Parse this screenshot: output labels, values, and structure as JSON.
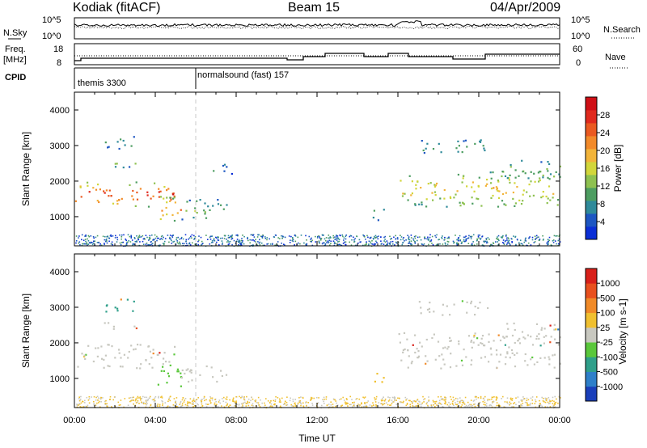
{
  "header": {
    "station": "Kodiak (fitACF)",
    "beam": "Beam 15",
    "date": "04/Apr/2009"
  },
  "strip_panels": {
    "noise": {
      "left_label": "N.Sky",
      "right_label": "N.Search",
      "left_ticks": [
        "10^5",
        "10^0"
      ],
      "right_ticks": [
        "10^5",
        "10^0"
      ]
    },
    "freq": {
      "left_label_top": "Freq.",
      "left_label_bottom": "[MHz]",
      "right_label": "Nave",
      "left_ticks": [
        "18",
        "8"
      ],
      "right_ticks": [
        "60",
        "0"
      ]
    },
    "cpid": {
      "label": "CPID",
      "modes": [
        {
          "name": "themis 3300",
          "start_hour": 0
        },
        {
          "name": "normalsound (fast) 157",
          "start_hour": 6
        }
      ]
    }
  },
  "chart_data": [
    {
      "type": "heatmap",
      "name": "Power",
      "x_label": "Time UT",
      "y_label": "Slant Range [km]",
      "x_range_hours": [
        0,
        24
      ],
      "y_range_km": [
        180,
        4500
      ],
      "y_ticks": [
        1000,
        2000,
        3000,
        4000
      ],
      "colorbar": {
        "label": "Power [dB]",
        "ticks": [
          "4",
          "8",
          "12",
          "16",
          "20",
          "24",
          "28"
        ],
        "colors": [
          "#0b2fd6",
          "#1d56c2",
          "#2f8a9a",
          "#4d9d61",
          "#8ec150",
          "#d2d63a",
          "#f2b43a",
          "#f28a2a",
          "#ea5a21",
          "#e02a1e",
          "#cf0f16"
        ]
      },
      "regions": [
        {
          "t": [
            0.0,
            5.0
          ],
          "r": [
            1300,
            2000
          ],
          "level": 9
        },
        {
          "t": [
            4.2,
            5.3
          ],
          "r": [
            800,
            1600
          ],
          "level": 7
        },
        {
          "t": [
            5.2,
            7.5
          ],
          "r": [
            900,
            1500
          ],
          "level": 4
        },
        {
          "t": [
            1.3,
            3.2
          ],
          "r": [
            2400,
            2600
          ],
          "level": 4
        },
        {
          "t": [
            1.5,
            3.0
          ],
          "r": [
            2900,
            3300
          ],
          "level": 3
        },
        {
          "t": [
            6.7,
            8.0
          ],
          "r": [
            2200,
            2500
          ],
          "level": 2
        },
        {
          "t": [
            14.7,
            15.3
          ],
          "r": [
            900,
            1300
          ],
          "level": 3
        },
        {
          "t": [
            16.0,
            24.0
          ],
          "r": [
            1300,
            2300
          ],
          "level": 6
        },
        {
          "t": [
            17.0,
            20.5
          ],
          "r": [
            2800,
            3200
          ],
          "level": 3
        },
        {
          "t": [
            21.0,
            24.0
          ],
          "r": [
            2100,
            2600
          ],
          "level": 4
        }
      ]
    },
    {
      "type": "heatmap",
      "name": "Velocity",
      "x_label": "Time UT",
      "y_label": "Slant Range [km]",
      "x_range_hours": [
        0,
        24
      ],
      "x_ticks": [
        "00:00",
        "04:00",
        "08:00",
        "12:00",
        "16:00",
        "20:00",
        "00:00"
      ],
      "y_range_km": [
        180,
        4500
      ],
      "y_ticks": [
        1000,
        2000,
        3000,
        4000
      ],
      "colorbar": {
        "label": "Velocity [m s-1]",
        "ticks": [
          "1000",
          "500",
          "100",
          "25",
          "-25",
          "-100",
          "-500",
          "-1000"
        ],
        "colors": [
          "#1a3fba",
          "#2e7fc9",
          "#2f9f8a",
          "#5ac73b",
          "#c8c8c0",
          "#f0c030",
          "#f08a28",
          "#e8501e",
          "#d8201a"
        ]
      },
      "regions": [
        {
          "t": [
            0.0,
            5.0
          ],
          "r": [
            1300,
            2000
          ],
          "color": "#c8c8c0"
        },
        {
          "t": [
            4.0,
            5.3
          ],
          "r": [
            800,
            1500
          ],
          "color": "#5ac73b"
        },
        {
          "t": [
            5.2,
            7.5
          ],
          "r": [
            900,
            1400
          ],
          "color": "#c8c8c0"
        },
        {
          "t": [
            1.3,
            3.2
          ],
          "r": [
            2400,
            2600
          ],
          "color": "#c8c8c0"
        },
        {
          "t": [
            1.5,
            3.0
          ],
          "r": [
            2900,
            3300
          ],
          "color": "#2f9f8a"
        },
        {
          "t": [
            14.7,
            15.3
          ],
          "r": [
            900,
            1300
          ],
          "color": "#f0c030"
        },
        {
          "t": [
            16.0,
            24.0
          ],
          "r": [
            1300,
            2300
          ],
          "color": "#c8c8c0"
        },
        {
          "t": [
            17.0,
            20.5
          ],
          "r": [
            2800,
            3200
          ],
          "color": "#c8c8c0"
        },
        {
          "t": [
            21.0,
            24.0
          ],
          "r": [
            2100,
            2600
          ],
          "color": "#c8c8c0"
        }
      ]
    }
  ]
}
